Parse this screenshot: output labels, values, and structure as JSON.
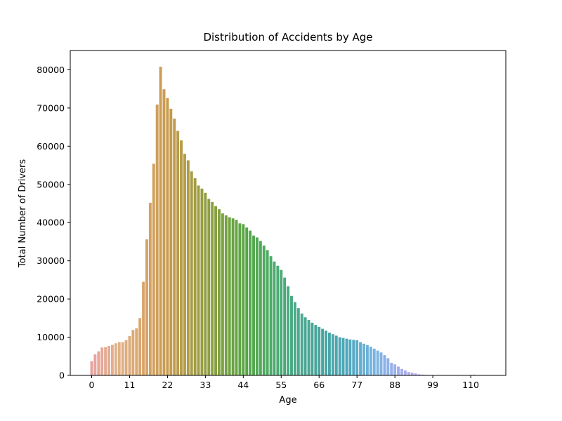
{
  "chart_data": {
    "type": "bar",
    "title": "Distribution of Accidents by Age",
    "xlabel": "Age",
    "ylabel": "Total Number of Drivers",
    "ylim": [
      0,
      85000
    ],
    "yticks": [
      0,
      10000,
      20000,
      30000,
      40000,
      50000,
      60000,
      70000,
      80000
    ],
    "xticks": [
      0,
      11,
      22,
      33,
      44,
      55,
      66,
      77,
      88,
      99,
      110
    ],
    "grid": false,
    "legend": "none",
    "categories": [
      0,
      1,
      2,
      3,
      4,
      5,
      6,
      7,
      8,
      9,
      10,
      11,
      12,
      13,
      14,
      15,
      16,
      17,
      18,
      19,
      20,
      21,
      22,
      23,
      24,
      25,
      26,
      27,
      28,
      29,
      30,
      31,
      32,
      33,
      34,
      35,
      36,
      37,
      38,
      39,
      40,
      41,
      42,
      43,
      44,
      45,
      46,
      47,
      48,
      49,
      50,
      51,
      52,
      53,
      54,
      55,
      56,
      57,
      58,
      59,
      60,
      61,
      62,
      63,
      64,
      65,
      66,
      67,
      68,
      69,
      70,
      71,
      72,
      73,
      74,
      75,
      76,
      77,
      78,
      79,
      80,
      81,
      82,
      83,
      84,
      85,
      86,
      87,
      88,
      89,
      90,
      91,
      92,
      93,
      94,
      95,
      96,
      97,
      98,
      99,
      100,
      101,
      102,
      103,
      104,
      105,
      106,
      107,
      108,
      109,
      110,
      111,
      112
    ],
    "values": [
      3700,
      5500,
      6300,
      7300,
      7400,
      7700,
      8000,
      8400,
      8700,
      8700,
      9200,
      10300,
      11900,
      12300,
      15000,
      24500,
      35600,
      45200,
      55400,
      70900,
      80800,
      74900,
      72600,
      69800,
      67200,
      64000,
      61500,
      58000,
      56300,
      53400,
      51600,
      49700,
      48900,
      47800,
      46200,
      45400,
      44300,
      43500,
      42400,
      41900,
      41400,
      41100,
      40700,
      39800,
      39600,
      38700,
      37900,
      36600,
      36100,
      35200,
      34000,
      32800,
      31200,
      29800,
      28700,
      27600,
      25600,
      23300,
      20800,
      19200,
      17600,
      16200,
      15200,
      14500,
      13800,
      13200,
      12700,
      12200,
      11700,
      11200,
      10800,
      10400,
      10000,
      9800,
      9600,
      9400,
      9300,
      9200,
      8700,
      8300,
      7900,
      7500,
      7000,
      6500,
      6000,
      5300,
      4500,
      3300,
      2900,
      2300,
      1700,
      1300,
      900,
      700,
      500,
      300,
      200,
      150,
      100,
      80,
      60,
      50,
      40,
      30,
      30,
      20,
      20,
      20,
      20,
      20,
      100,
      200,
      50
    ],
    "colors": [
      "#e8a2a0",
      "#e1b28a",
      "#d9a46a",
      "#c79a4d",
      "#a39c43",
      "#7ea140",
      "#56a646",
      "#4dab6a",
      "#4aa98c",
      "#4aa4a0",
      "#4ea7bd",
      "#7ab4e2",
      "#a3adee",
      "#c2a6ee",
      "#dfa0e1",
      "#e6a0c6"
    ]
  }
}
